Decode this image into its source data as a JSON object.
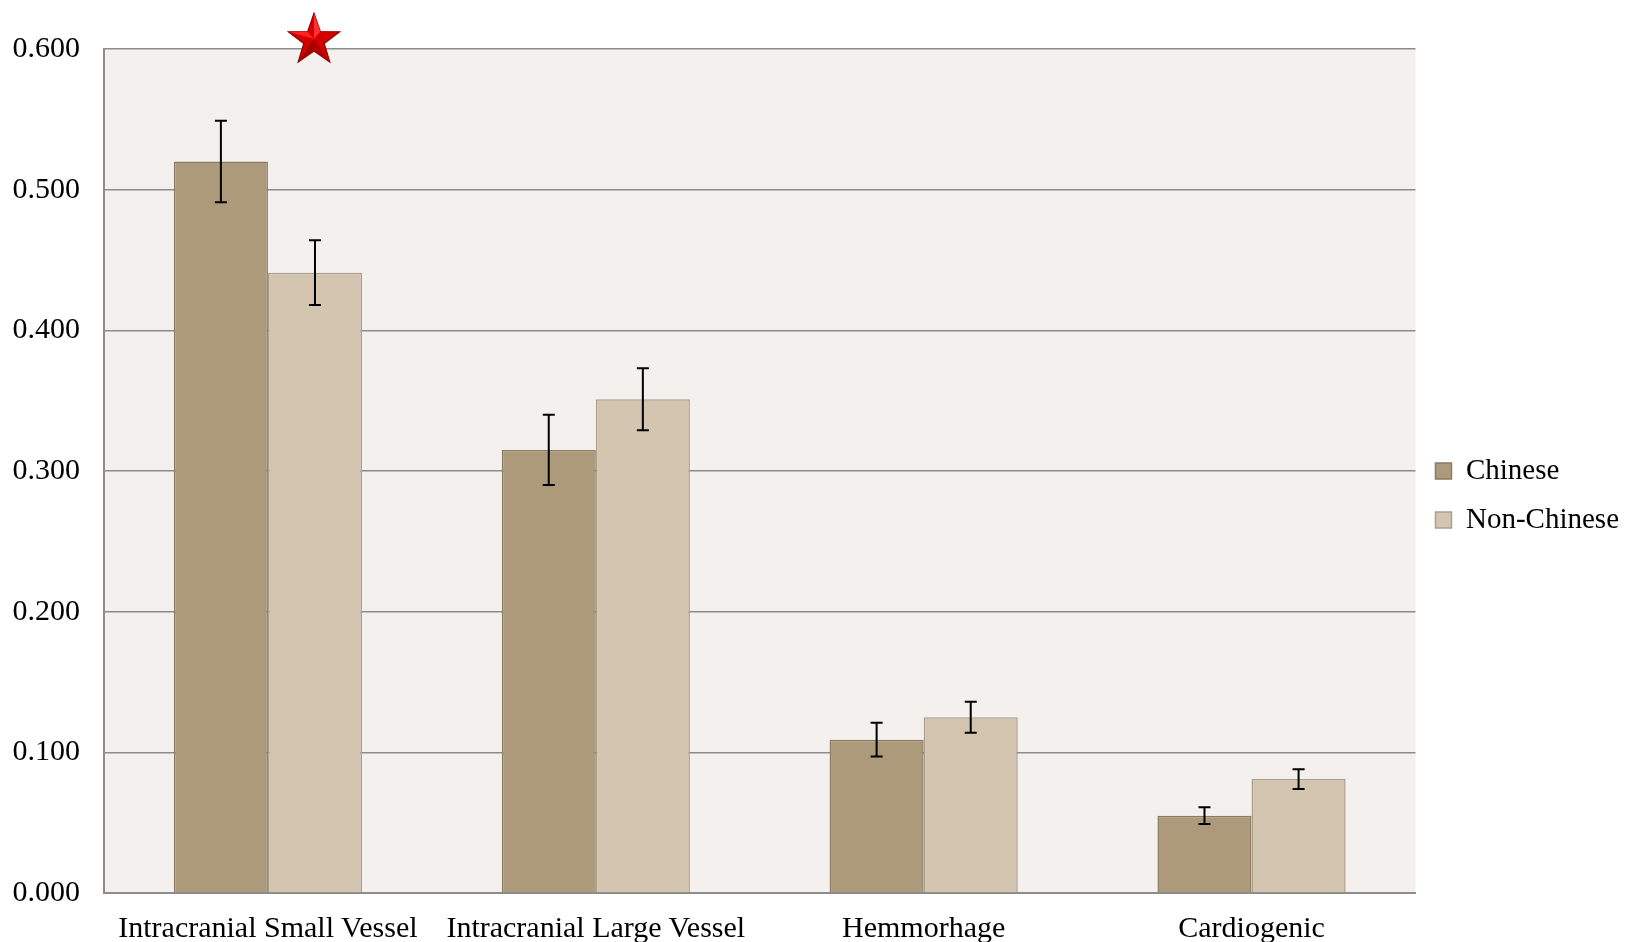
{
  "chart_data": {
    "type": "bar",
    "categories": [
      "Intracranial Small Vessel",
      "Intracranial Large Vessel",
      "Hemmorhage",
      "Cardiogenic"
    ],
    "series": [
      {
        "name": "Chinese",
        "color": "#ac9a7b",
        "values": [
          0.52,
          0.315,
          0.109,
          0.055
        ],
        "errors": [
          0.029,
          0.025,
          0.012,
          0.006
        ]
      },
      {
        "name": "Non-Chinese",
        "color": "#d4c5b1",
        "values": [
          0.441,
          0.351,
          0.125,
          0.081
        ],
        "errors": [
          0.023,
          0.022,
          0.011,
          0.007
        ]
      }
    ],
    "ylim": [
      0,
      0.6
    ],
    "yticks": [
      {
        "value": 0,
        "label": "0.000"
      },
      {
        "value": 0.1,
        "label": "0.100"
      },
      {
        "value": 0.2,
        "label": "0.200"
      },
      {
        "value": 0.3,
        "label": "0.300"
      },
      {
        "value": 0.4,
        "label": "0.400"
      },
      {
        "value": 0.5,
        "label": "0.500"
      },
      {
        "value": 0.6,
        "label": "0.600"
      }
    ],
    "grid": "y",
    "legend": "right"
  }
}
